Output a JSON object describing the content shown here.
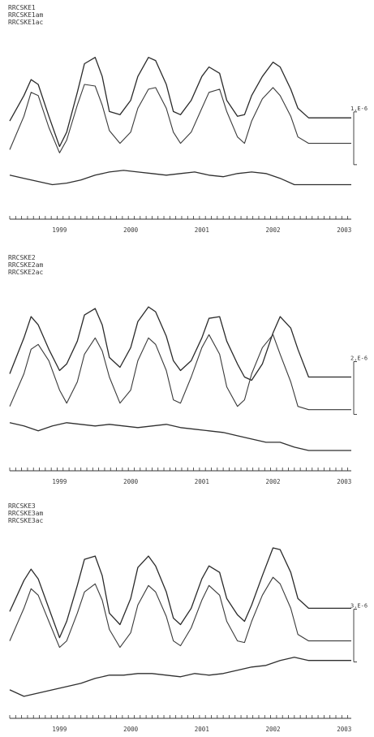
{
  "chart_data": [
    {
      "type": "line",
      "legend": [
        "RRCSKE1",
        "RRCSKE1am",
        "RRCSKE1ac"
      ],
      "x_range": [
        1998.8,
        2003.6
      ],
      "tick_labels": [
        "1999",
        "2000",
        "2001",
        "2002",
        "2003"
      ],
      "scale_label": "1,E-6",
      "series": [
        {
          "name": "RRCSKE1",
          "x": [
            1998.8,
            1999.0,
            1999.1,
            1999.2,
            1999.35,
            1999.5,
            1999.6,
            1999.75,
            1999.85,
            2000.0,
            2000.1,
            2000.2,
            2000.35,
            2000.5,
            2000.6,
            2000.75,
            2000.85,
            2001.0,
            2001.1,
            2001.2,
            2001.35,
            2001.5,
            2001.6,
            2001.75,
            2001.85,
            2002.0,
            2002.1,
            2002.2,
            2002.35,
            2002.5,
            2002.6,
            2002.75,
            2002.85,
            2003.0,
            2003.1,
            2003.2,
            2003.35,
            2003.5,
            2003.6
          ],
          "y": [
            2.2,
            3.8,
            4.8,
            4.5,
            2.5,
            0.6,
            1.5,
            4.0,
            5.8,
            6.2,
            5.0,
            2.8,
            2.6,
            3.5,
            5.0,
            6.2,
            6.0,
            4.5,
            2.8,
            2.6,
            3.5,
            5.0,
            5.6,
            5.2,
            3.5,
            2.5,
            2.6,
            3.8,
            5.0,
            5.9,
            5.6,
            4.2,
            3.0,
            2.4,
            2.4,
            2.4,
            2.4,
            2.4,
            2.4
          ]
        },
        {
          "name": "RRCSKE1am",
          "x": [
            1998.8,
            1999.0,
            1999.1,
            1999.2,
            1999.35,
            1999.5,
            1999.6,
            1999.75,
            1999.85,
            2000.0,
            2000.1,
            2000.2,
            2000.35,
            2000.5,
            2000.6,
            2000.75,
            2000.85,
            2001.0,
            2001.1,
            2001.2,
            2001.35,
            2001.5,
            2001.6,
            2001.75,
            2001.85,
            2002.0,
            2002.1,
            2002.2,
            2002.35,
            2002.5,
            2002.6,
            2002.75,
            2002.85,
            2003.0,
            2003.1,
            2003.2,
            2003.35,
            2003.5,
            2003.6
          ],
          "y": [
            0.4,
            2.5,
            4.0,
            3.8,
            1.8,
            0.2,
            1.0,
            3.2,
            4.5,
            4.4,
            3.2,
            1.6,
            0.8,
            1.5,
            3.0,
            4.2,
            4.3,
            3.0,
            1.5,
            0.8,
            1.5,
            3.0,
            4.0,
            4.2,
            2.8,
            1.2,
            0.8,
            2.2,
            3.6,
            4.3,
            3.8,
            2.5,
            1.2,
            0.8,
            0.8,
            0.8,
            0.8,
            0.8,
            0.8
          ]
        },
        {
          "name": "RRCSKE1ac",
          "x": [
            1998.8,
            1999.0,
            1999.2,
            1999.4,
            1999.6,
            1999.8,
            2000.0,
            2000.2,
            2000.4,
            2000.6,
            2000.8,
            2001.0,
            2001.2,
            2001.4,
            2001.6,
            2001.8,
            2002.0,
            2002.2,
            2002.4,
            2002.6,
            2002.8,
            2003.0,
            2003.2,
            2003.4,
            2003.6
          ],
          "y": [
            -1.2,
            -1.4,
            -1.6,
            -1.8,
            -1.7,
            -1.5,
            -1.2,
            -1.0,
            -0.9,
            -1.0,
            -1.1,
            -1.2,
            -1.1,
            -1.0,
            -1.2,
            -1.3,
            -1.1,
            -1.0,
            -1.1,
            -1.4,
            -1.8,
            -1.8,
            -1.8,
            -1.8,
            -1.8
          ]
        }
      ]
    },
    {
      "type": "line",
      "legend": [
        "RRCSKE2",
        "RRCSKE2am",
        "RRCSKE2ac"
      ],
      "x_range": [
        1998.8,
        2003.6
      ],
      "tick_labels": [
        "1999",
        "2000",
        "2001",
        "2002",
        "2003"
      ],
      "scale_label": "2,E-6",
      "series": [
        {
          "name": "RRCSKE2",
          "x": [
            1998.8,
            1999.0,
            1999.1,
            1999.2,
            1999.35,
            1999.5,
            1999.6,
            1999.75,
            1999.85,
            2000.0,
            2000.1,
            2000.2,
            2000.35,
            2000.5,
            2000.6,
            2000.75,
            2000.85,
            2001.0,
            2001.1,
            2001.2,
            2001.35,
            2001.5,
            2001.6,
            2001.75,
            2001.85,
            2002.0,
            2002.1,
            2002.2,
            2002.35,
            2002.5,
            2002.6,
            2002.75,
            2002.85,
            2003.0,
            2003.1,
            2003.2,
            2003.35,
            2003.5,
            2003.6
          ],
          "y": [
            2.0,
            4.2,
            5.5,
            5.0,
            3.5,
            2.2,
            2.6,
            4.0,
            5.6,
            6.0,
            5.0,
            3.0,
            2.4,
            3.6,
            5.2,
            6.1,
            5.8,
            4.3,
            2.8,
            2.2,
            2.8,
            4.2,
            5.4,
            5.5,
            4.0,
            2.6,
            1.8,
            1.6,
            2.6,
            4.5,
            5.5,
            4.8,
            3.5,
            1.8,
            1.8,
            1.8,
            1.8,
            1.8,
            1.8
          ]
        },
        {
          "name": "RRCSKE2am",
          "x": [
            1998.8,
            1999.0,
            1999.1,
            1999.2,
            1999.35,
            1999.5,
            1999.6,
            1999.75,
            1999.85,
            2000.0,
            2000.1,
            2000.2,
            2000.35,
            2000.5,
            2000.6,
            2000.75,
            2000.85,
            2001.0,
            2001.1,
            2001.2,
            2001.35,
            2001.5,
            2001.6,
            2001.75,
            2001.85,
            2002.0,
            2002.1,
            2002.2,
            2002.35,
            2002.5,
            2002.6,
            2002.75,
            2002.85,
            2003.0,
            2003.1,
            2003.2,
            2003.35,
            2003.5,
            2003.6
          ],
          "y": [
            0.0,
            2.0,
            3.5,
            3.8,
            2.8,
            1.0,
            0.2,
            1.5,
            3.2,
            4.2,
            3.4,
            1.8,
            0.2,
            1.0,
            2.8,
            4.2,
            3.8,
            2.2,
            0.4,
            0.2,
            1.8,
            3.6,
            4.4,
            3.2,
            1.2,
            0.0,
            0.4,
            2.0,
            3.6,
            4.4,
            3.2,
            1.5,
            0.0,
            -0.2,
            -0.2,
            -0.2,
            -0.2,
            -0.2,
            -0.2
          ]
        },
        {
          "name": "RRCSKE2ac",
          "x": [
            1998.8,
            1999.0,
            1999.2,
            1999.4,
            1999.6,
            1999.8,
            2000.0,
            2000.2,
            2000.4,
            2000.6,
            2000.8,
            2001.0,
            2001.2,
            2001.4,
            2001.6,
            2001.8,
            2002.0,
            2002.2,
            2002.4,
            2002.6,
            2002.8,
            2003.0,
            2003.2,
            2003.4,
            2003.6
          ],
          "y": [
            -1.0,
            -1.2,
            -1.5,
            -1.2,
            -1.0,
            -1.1,
            -1.2,
            -1.1,
            -1.2,
            -1.3,
            -1.2,
            -1.1,
            -1.3,
            -1.4,
            -1.5,
            -1.6,
            -1.8,
            -2.0,
            -2.2,
            -2.2,
            -2.5,
            -2.7,
            -2.7,
            -2.7,
            -2.7
          ]
        }
      ]
    },
    {
      "type": "line",
      "legend": [
        "RRCSKE3",
        "RRCSKE3am",
        "RRCSKE3ac"
      ],
      "x_range": [
        1998.8,
        2003.6
      ],
      "tick_labels": [
        "1999",
        "2000",
        "2001",
        "2002",
        "2003"
      ],
      "scale_label": "3,E-6",
      "series": [
        {
          "name": "RRCSKE3",
          "x": [
            1998.8,
            1999.0,
            1999.1,
            1999.2,
            1999.35,
            1999.5,
            1999.6,
            1999.75,
            1999.85,
            2000.0,
            2000.1,
            2000.2,
            2000.35,
            2000.5,
            2000.6,
            2000.75,
            2000.85,
            2001.0,
            2001.1,
            2001.2,
            2001.35,
            2001.5,
            2001.6,
            2001.75,
            2001.85,
            2002.0,
            2002.1,
            2002.2,
            2002.35,
            2002.5,
            2002.6,
            2002.75,
            2002.85,
            2003.0,
            2003.1,
            2003.2,
            2003.35,
            2003.5,
            2003.6
          ],
          "y": [
            2.6,
            4.5,
            5.2,
            4.6,
            2.8,
            1.0,
            2.0,
            4.2,
            5.8,
            6.0,
            4.8,
            2.5,
            1.8,
            3.4,
            5.3,
            6.0,
            5.4,
            3.8,
            2.2,
            1.8,
            2.8,
            4.6,
            5.4,
            5.0,
            3.4,
            2.4,
            2.0,
            3.0,
            4.8,
            6.5,
            6.4,
            5.0,
            3.4,
            2.8,
            2.8,
            2.8,
            2.8,
            2.8,
            2.8
          ]
        },
        {
          "name": "RRCSKE3am",
          "x": [
            1998.8,
            1999.0,
            1999.1,
            1999.2,
            1999.35,
            1999.5,
            1999.6,
            1999.75,
            1999.85,
            2000.0,
            2000.1,
            2000.2,
            2000.35,
            2000.5,
            2000.6,
            2000.75,
            2000.85,
            2001.0,
            2001.1,
            2001.2,
            2001.35,
            2001.5,
            2001.6,
            2001.75,
            2001.85,
            2002.0,
            2002.1,
            2002.2,
            2002.35,
            2002.5,
            2002.6,
            2002.75,
            2002.85,
            2003.0,
            2003.1,
            2003.2,
            2003.35,
            2003.5,
            2003.6
          ],
          "y": [
            0.8,
            2.8,
            4.0,
            3.6,
            2.0,
            0.4,
            0.8,
            2.5,
            3.8,
            4.3,
            3.3,
            1.5,
            0.4,
            1.3,
            3.0,
            4.2,
            3.8,
            2.3,
            0.8,
            0.5,
            1.6,
            3.3,
            4.2,
            3.6,
            2.0,
            0.8,
            0.7,
            2.0,
            3.6,
            4.7,
            4.3,
            2.8,
            1.2,
            0.8,
            0.8,
            0.8,
            0.8,
            0.8,
            0.8
          ]
        },
        {
          "name": "RRCSKE3ac",
          "x": [
            1998.8,
            1999.0,
            1999.2,
            1999.4,
            1999.6,
            1999.8,
            2000.0,
            2000.2,
            2000.4,
            2000.6,
            2000.8,
            2001.0,
            2001.2,
            2001.4,
            2001.6,
            2001.8,
            2002.0,
            2002.2,
            2002.4,
            2002.6,
            2002.8,
            2003.0,
            2003.2,
            2003.4,
            2003.6
          ],
          "y": [
            -2.2,
            -2.6,
            -2.4,
            -2.2,
            -2.0,
            -1.8,
            -1.5,
            -1.3,
            -1.3,
            -1.2,
            -1.2,
            -1.3,
            -1.4,
            -1.2,
            -1.3,
            -1.2,
            -1.0,
            -0.8,
            -0.7,
            -0.4,
            -0.2,
            -0.4,
            -0.4,
            -0.4,
            -0.4
          ]
        }
      ]
    }
  ]
}
